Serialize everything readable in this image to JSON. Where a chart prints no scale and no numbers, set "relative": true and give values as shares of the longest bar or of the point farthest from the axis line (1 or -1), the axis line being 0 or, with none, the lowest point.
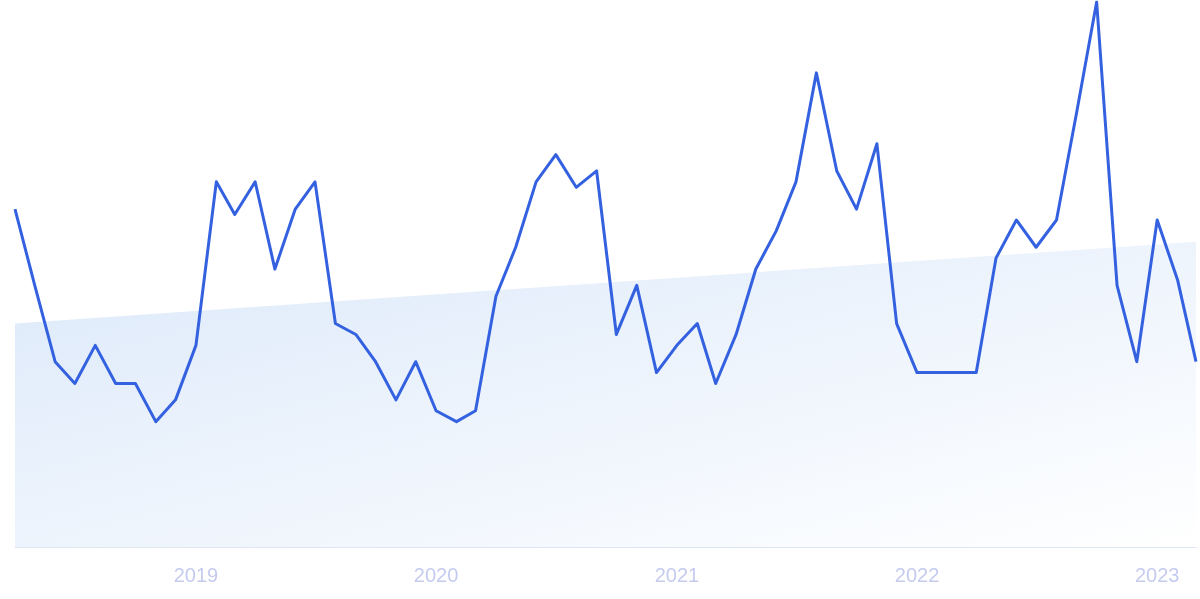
{
  "chart_data": {
    "type": "line",
    "relative": true,
    "marker": "none",
    "line_style": "solid",
    "x": [
      "2018-04",
      "2018-05",
      "2018-06",
      "2018-07",
      "2018-08",
      "2018-09",
      "2018-10",
      "2018-11",
      "2018-12",
      "2019-01",
      "2019-02",
      "2019-03",
      "2019-04",
      "2019-05",
      "2019-06",
      "2019-07",
      "2019-08",
      "2019-09",
      "2019-10",
      "2019-11",
      "2019-12",
      "2020-01",
      "2020-02",
      "2020-03",
      "2020-04",
      "2020-05",
      "2020-06",
      "2020-07",
      "2020-08",
      "2020-09",
      "2020-10",
      "2020-11",
      "2020-12",
      "2021-01",
      "2021-02",
      "2021-03",
      "2021-04",
      "2021-05",
      "2021-06",
      "2021-07",
      "2021-08",
      "2021-09",
      "2021-10",
      "2021-11",
      "2021-12",
      "2022-01",
      "2022-02",
      "2022-03",
      "2022-04",
      "2022-05",
      "2022-06",
      "2022-07",
      "2022-08",
      "2022-09",
      "2022-10",
      "2022-11",
      "2022-12",
      "2023-01",
      "2023-02",
      "2023-03"
    ],
    "xlim": [
      "2018-04",
      "2023-03"
    ],
    "xticks": [
      {
        "value": "2019-01",
        "label": "2019"
      },
      {
        "value": "2020-01",
        "label": "2020"
      },
      {
        "value": "2021-01",
        "label": "2021"
      },
      {
        "value": "2022-01",
        "label": "2022"
      },
      {
        "value": "2023-01",
        "label": "2023"
      }
    ],
    "series": [
      {
        "type": "area",
        "color": "#dce9fa",
        "x": [
          "2018-04",
          "2023-03"
        ],
        "values": [
          0.41,
          0.56
        ]
      },
      {
        "color": "#3461e0",
        "values": [
          0.62,
          0.48,
          0.34,
          0.3,
          0.37,
          0.3,
          0.3,
          0.23,
          0.27,
          0.37,
          0.67,
          0.61,
          0.67,
          0.51,
          0.62,
          0.67,
          0.41,
          0.39,
          0.34,
          0.27,
          0.34,
          0.25,
          0.23,
          0.25,
          0.46,
          0.55,
          0.67,
          0.72,
          0.66,
          0.69,
          0.39,
          0.48,
          0.32,
          0.37,
          0.41,
          0.3,
          0.39,
          0.51,
          0.58,
          0.67,
          0.87,
          0.69,
          0.62,
          0.74,
          0.41,
          0.32,
          0.32,
          0.32,
          0.32,
          0.53,
          0.6,
          0.55,
          0.6,
          0.8,
          1,
          0.48,
          0.34,
          0.6,
          0.49,
          0.34
        ]
      }
    ]
  }
}
